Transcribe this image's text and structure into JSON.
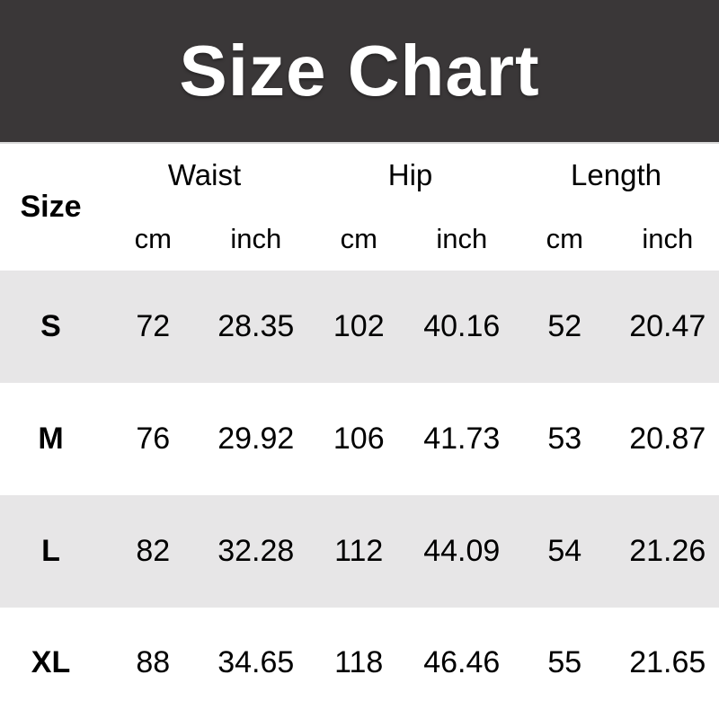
{
  "banner": {
    "title": "Size Chart"
  },
  "table": {
    "size_header": "Size",
    "groups": [
      {
        "label": "Waist"
      },
      {
        "label": "Hip"
      },
      {
        "label": "Length"
      }
    ],
    "unit_cm": "cm",
    "unit_inch": "inch",
    "rows": [
      {
        "size": "S",
        "values": [
          "72",
          "28.35",
          "102",
          "40.16",
          "52",
          "20.47"
        ]
      },
      {
        "size": "M",
        "values": [
          "76",
          "29.92",
          "106",
          "41.73",
          "53",
          "20.87"
        ]
      },
      {
        "size": "L",
        "values": [
          "82",
          "32.28",
          "112",
          "44.09",
          "54",
          "21.26"
        ]
      },
      {
        "size": "XL",
        "values": [
          "88",
          "34.65",
          "118",
          "46.46",
          "55",
          "21.65"
        ]
      }
    ]
  },
  "colors": {
    "banner_bg": "#3a3738",
    "banner_text": "#ffffff",
    "row_alt_bg": "#e7e6e7",
    "row_bg": "#ffffff",
    "text": "#000000"
  },
  "chart_data": {
    "type": "table",
    "title": "Size Chart",
    "columns": [
      "Size",
      "Waist cm",
      "Waist inch",
      "Hip cm",
      "Hip inch",
      "Length cm",
      "Length inch"
    ],
    "rows": [
      [
        "S",
        72,
        28.35,
        102,
        40.16,
        52,
        20.47
      ],
      [
        "M",
        76,
        29.92,
        106,
        41.73,
        53,
        20.87
      ],
      [
        "L",
        82,
        32.28,
        112,
        44.09,
        54,
        21.26
      ],
      [
        "XL",
        88,
        34.65,
        118,
        46.46,
        55,
        21.65
      ]
    ],
    "layout": {
      "header_groups": [
        "Waist",
        "Hip",
        "Length"
      ],
      "subheaders": [
        "cm",
        "inch"
      ],
      "alternating_row_shading": true
    }
  }
}
